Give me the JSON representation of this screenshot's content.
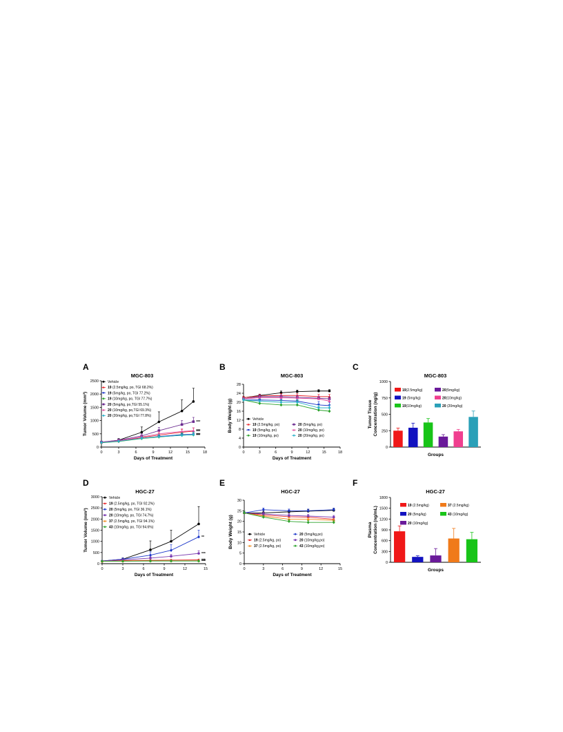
{
  "charts": [
    {
      "panel": "A",
      "type": "line",
      "title": "MGC-803",
      "xlabel": "Days of Treatment",
      "ylabel": "Tumor Volume (mm³)",
      "xlim": [
        0,
        18
      ],
      "ylim": [
        0,
        2500
      ],
      "xticks": [
        "0",
        "3",
        "6",
        "9",
        "12",
        "15",
        "18"
      ],
      "yticks": [
        "0",
        "500",
        "1000",
        "1500",
        "2000",
        "2500"
      ],
      "legend_position": "top-left",
      "series": [
        {
          "bold": "",
          "label": "Vehicle",
          "color": "#000000",
          "marker": "circle",
          "x": [
            0,
            3,
            7,
            10,
            14,
            16
          ],
          "y": [
            180,
            260,
            560,
            950,
            1360,
            1720
          ],
          "err": [
            30,
            60,
            200,
            380,
            420,
            500
          ],
          "stars": ""
        },
        {
          "bold": "19",
          "label": " (2.5mg/kg, po, TGI 68.2%)",
          "color": "#e8262b",
          "marker": "triangle",
          "x": [
            0,
            3,
            7,
            10,
            14,
            16
          ],
          "y": [
            170,
            230,
            360,
            450,
            560,
            600
          ],
          "err": [
            20,
            30,
            60,
            90,
            110,
            120
          ],
          "stars": "***"
        },
        {
          "bold": "19",
          "label": " (5mg/kg, po, TGI 77.2%)",
          "color": "#1a35c9",
          "marker": "triangle-down",
          "x": [
            0,
            3,
            7,
            10,
            14,
            16
          ],
          "y": [
            170,
            220,
            330,
            400,
            470,
            480
          ],
          "err": [
            20,
            30,
            50,
            80,
            90,
            100
          ],
          "stars": "***"
        },
        {
          "bold": "19",
          "label": " (10mg/kg, po, TGI 77.7%)",
          "color": "#2aa22a",
          "marker": "diamond",
          "x": [
            0,
            3,
            7,
            10,
            14,
            16
          ],
          "y": [
            160,
            210,
            320,
            380,
            450,
            460
          ],
          "err": [
            20,
            30,
            50,
            70,
            90,
            90
          ],
          "stars": "***"
        },
        {
          "bold": "20",
          "label": " (5mg/kg, po,TGI 55.1%)",
          "color": "#6a2a8f",
          "marker": "square",
          "x": [
            0,
            3,
            7,
            10,
            14,
            16
          ],
          "y": [
            190,
            260,
            420,
            620,
            850,
            960
          ],
          "err": [
            20,
            40,
            80,
            120,
            150,
            160
          ],
          "stars": "***"
        },
        {
          "bold": "20",
          "label": " (10mg/kg, po,TGI 69.3%)",
          "color": "#e0509e",
          "marker": "triangle",
          "x": [
            0,
            3,
            7,
            10,
            14,
            16
          ],
          "y": [
            180,
            240,
            380,
            500,
            590,
            620
          ],
          "err": [
            20,
            30,
            60,
            90,
            100,
            110
          ],
          "stars": "***"
        },
        {
          "bold": "20",
          "label": " (20mg/kg, po,TGI 77.8%)",
          "color": "#2ab0c8",
          "marker": "diamond",
          "x": [
            0,
            3,
            7,
            10,
            14,
            16
          ],
          "y": [
            170,
            220,
            330,
            390,
            440,
            470
          ],
          "err": [
            20,
            30,
            50,
            80,
            80,
            90
          ],
          "stars": "***"
        }
      ]
    },
    {
      "panel": "B",
      "type": "line",
      "title": "MGC-803",
      "xlabel": "Days of Treatment",
      "ylabel": "Body Weight (g)",
      "xlim": [
        0,
        18
      ],
      "ylim": [
        0,
        28
      ],
      "xticks": [
        "0",
        "3",
        "6",
        "9",
        "12",
        "15",
        "18"
      ],
      "yticks": [
        "0",
        "4",
        "8",
        "12",
        "16",
        "20",
        "24",
        "28"
      ],
      "legend_position": "bottom",
      "series": [
        {
          "bold": "",
          "label": "Vehicle",
          "color": "#000000",
          "marker": "circle",
          "x": [
            0,
            3,
            7,
            10,
            14,
            16
          ],
          "y": [
            22,
            23,
            24.2,
            24.7,
            25,
            25
          ],
          "err": [
            0.6,
            0.6,
            0.8,
            0.7,
            0.6,
            0.6
          ]
        },
        {
          "bold": "19",
          "label": " (2.5mg/kg, po)",
          "color": "#e8262b",
          "marker": "triangle",
          "x": [
            0,
            3,
            7,
            10,
            14,
            16
          ],
          "y": [
            22,
            22.8,
            23,
            23,
            22.5,
            22.5
          ],
          "err": [
            0.6,
            0.8,
            0.8,
            0.8,
            1.0,
            1.0
          ]
        },
        {
          "bold": "19",
          "label": " (5mg/kg, po)",
          "color": "#1a35c9",
          "marker": "triangle-down",
          "x": [
            0,
            3,
            7,
            10,
            14,
            16
          ],
          "y": [
            21,
            21,
            20.8,
            20.5,
            18.8,
            18.5
          ],
          "err": [
            0.6,
            1.2,
            1.2,
            1.2,
            1.5,
            1.5
          ]
        },
        {
          "bold": "19",
          "label": " (10mg/kg, po)",
          "color": "#2aa22a",
          "marker": "diamond",
          "x": [
            0,
            3,
            7,
            10,
            14,
            16
          ],
          "y": [
            21,
            19.5,
            18.8,
            18.8,
            16.5,
            16
          ],
          "err": [
            0.6,
            2.0,
            2.0,
            2.0,
            1.5,
            1.5
          ]
        },
        {
          "bold": "20",
          "label": " (5mg/kg, po)",
          "color": "#6a2a8f",
          "marker": "square",
          "x": [
            0,
            3,
            7,
            10,
            14,
            16
          ],
          "y": [
            21.5,
            22.5,
            22.5,
            22.2,
            21.8,
            21.5
          ],
          "err": [
            0.6,
            0.8,
            0.8,
            0.9,
            0.9,
            0.9
          ]
        },
        {
          "bold": "20",
          "label": " (10mg/kg, po)",
          "color": "#e0509e",
          "marker": "triangle",
          "x": [
            0,
            3,
            7,
            10,
            14,
            16
          ],
          "y": [
            21.5,
            22,
            22,
            21.8,
            21.5,
            20.5
          ],
          "err": [
            0.6,
            0.8,
            0.8,
            0.8,
            1.0,
            1.0
          ]
        },
        {
          "bold": "20",
          "label": " (20mg/kg, po)",
          "color": "#2ab0c8",
          "marker": "diamond",
          "x": [
            0,
            3,
            7,
            10,
            14,
            16
          ],
          "y": [
            21,
            20.5,
            20,
            20,
            17.5,
            17.5
          ],
          "err": [
            0.6,
            1.0,
            1.0,
            1.2,
            1.2,
            1.2
          ]
        }
      ]
    },
    {
      "panel": "C",
      "type": "bar",
      "title": "MGC-803",
      "xlabel": "Groups",
      "ylabel": "Tumor Tissue Concentration (ng/g)",
      "ylabel_lines": [
        "Tumor Tissue",
        "Concentration (ng/g)"
      ],
      "ylim": [
        0,
        1000
      ],
      "yticks": [
        "0",
        "250",
        "500",
        "750",
        "1000"
      ],
      "legend_position": "top",
      "bars": [
        {
          "bold": "19",
          "label": "(2.5mg/kg)",
          "color": "#f01818",
          "value": 250,
          "err": 40
        },
        {
          "bold": "19",
          "label": " (5mg/kg)",
          "color": "#1212c0",
          "value": 295,
          "err": 70
        },
        {
          "bold": "19",
          "label": "(10mg/kg)",
          "color": "#18c418",
          "value": 375,
          "err": 60
        },
        {
          "bold": "20",
          "label": "(5mg/kg)",
          "color": "#6a1a9a",
          "value": 160,
          "err": 30
        },
        {
          "bold": "20",
          "label": "(10mg/kg)",
          "color": "#f0408f",
          "value": 240,
          "err": 30
        },
        {
          "bold": "20",
          "label": " (20mg/kg)",
          "color": "#2aa0b8",
          "value": 460,
          "err": 90
        }
      ]
    },
    {
      "panel": "D",
      "type": "line",
      "title": "HGC-27",
      "xlabel": "Days of Treatment",
      "ylabel": "Tumor Volume (mm³)",
      "xlim": [
        0,
        15
      ],
      "ylim": [
        0,
        3000
      ],
      "xticks": [
        "0",
        "3",
        "6",
        "9",
        "12",
        "15"
      ],
      "yticks": [
        "0",
        "500",
        "1000",
        "1500",
        "2000",
        "2500",
        "3000"
      ],
      "legend_position": "top-left",
      "series": [
        {
          "bold": "",
          "label": "Vehicle",
          "color": "#000000",
          "marker": "circle",
          "x": [
            0,
            3,
            7,
            10,
            14
          ],
          "y": [
            120,
            200,
            620,
            1000,
            1780
          ],
          "err": [
            20,
            60,
            400,
            500,
            780
          ],
          "stars": ""
        },
        {
          "bold": "19",
          "label": " (2.5mg/kg, po, TGI 92.2%)",
          "color": "#e8262b",
          "marker": "triangle",
          "x": [
            0,
            3,
            7,
            10,
            14
          ],
          "y": [
            110,
            140,
            150,
            160,
            170
          ],
          "err": [
            20,
            20,
            30,
            30,
            30
          ],
          "stars": "***"
        },
        {
          "bold": "20",
          "label": " (5mg/kg, po, TGI 36.1%)",
          "color": "#1a35c9",
          "marker": "diamond",
          "x": [
            0,
            3,
            7,
            10,
            14
          ],
          "y": [
            120,
            200,
            380,
            600,
            1200
          ],
          "err": [
            20,
            50,
            150,
            250,
            300
          ],
          "stars": "**"
        },
        {
          "bold": "20",
          "label": " (10mg/kg, po, TGI 74.7%)",
          "color": "#7a3ab0",
          "marker": "circle",
          "x": [
            0,
            3,
            7,
            10,
            14
          ],
          "y": [
            120,
            170,
            250,
            330,
            460
          ],
          "err": [
            20,
            40,
            60,
            80,
            120
          ],
          "stars": "***"
        },
        {
          "bold": "37",
          "label": " (2.5mg/kg, po, TGI 94.1%)",
          "color": "#f08a1a",
          "marker": "triangle",
          "x": [
            0,
            3,
            7,
            10,
            14
          ],
          "y": [
            110,
            120,
            130,
            130,
            130
          ],
          "err": [
            15,
            20,
            20,
            20,
            20
          ],
          "stars": "***"
        },
        {
          "bold": "43",
          "label": " (10mg/kg, po, TGI 94.6%)",
          "color": "#2aa22a",
          "marker": "diamond",
          "x": [
            0,
            3,
            7,
            10,
            14
          ],
          "y": [
            110,
            110,
            120,
            120,
            120
          ],
          "err": [
            15,
            15,
            15,
            15,
            15
          ],
          "stars": "***"
        }
      ]
    },
    {
      "panel": "E",
      "type": "line",
      "title": "HGC-27",
      "xlabel": "Days of Treatment",
      "ylabel": "Body Weight (g)",
      "xlim": [
        0,
        15
      ],
      "ylim": [
        0,
        30
      ],
      "xticks": [
        "0",
        "3",
        "6",
        "9",
        "12",
        "15"
      ],
      "yticks": [
        "0",
        "5",
        "10",
        "15",
        "20",
        "25",
        "30"
      ],
      "legend_position": "bottom",
      "series": [
        {
          "bold": "",
          "label": "Vehicle",
          "color": "#000000",
          "marker": "circle",
          "x": [
            0,
            3,
            7,
            10,
            14
          ],
          "y": [
            24,
            24,
            24.5,
            24.8,
            25.2
          ],
          "err": [
            0.8,
            0.8,
            0.8,
            0.8,
            0.8
          ]
        },
        {
          "bold": "19",
          "label": " (2.5mg/kg, po)",
          "color": "#e8262b",
          "marker": "triangle",
          "x": [
            0,
            3,
            7,
            10,
            14
          ],
          "y": [
            24,
            23,
            22.2,
            22,
            21
          ],
          "err": [
            0.8,
            0.8,
            0.8,
            0.8,
            0.8
          ]
        },
        {
          "bold": "37",
          "label": " (2.5mg/kg, po)",
          "color": "#f08a1a",
          "marker": "triangle",
          "x": [
            0,
            3,
            7,
            10,
            14
          ],
          "y": [
            24,
            22.5,
            21,
            21,
            20.5
          ],
          "err": [
            0.8,
            0.8,
            0.8,
            0.8,
            0.8
          ]
        },
        {
          "bold": "20",
          "label": " (5mg/kg,po)",
          "color": "#1a35c9",
          "marker": "diamond",
          "x": [
            0,
            3,
            7,
            10,
            14
          ],
          "y": [
            24,
            25.5,
            25,
            25,
            25.5
          ],
          "err": [
            0.8,
            0.8,
            0.8,
            0.8,
            0.8
          ]
        },
        {
          "bold": "20",
          "label": " (10mg/kg,po)",
          "color": "#7a3ab0",
          "marker": "circle",
          "x": [
            0,
            3,
            7,
            10,
            14
          ],
          "y": [
            24,
            23.5,
            22.8,
            22.5,
            22
          ],
          "err": [
            0.8,
            0.8,
            0.8,
            0.8,
            0.8
          ]
        },
        {
          "bold": "43",
          "label": " (10mg/kg,po)",
          "color": "#2aa22a",
          "marker": "diamond",
          "x": [
            0,
            3,
            7,
            10,
            14
          ],
          "y": [
            24,
            22,
            20,
            19.5,
            19.5
          ],
          "err": [
            0.8,
            0.8,
            0.8,
            0.8,
            0.8
          ]
        }
      ]
    },
    {
      "panel": "F",
      "type": "bar",
      "title": "HGC-27",
      "xlabel": "Groups",
      "ylabel": "Plasma Concentration (ng/mL)",
      "ylabel_lines": [
        "Plasma",
        "Concentration (ng/mL)"
      ],
      "ylim": [
        0,
        1800
      ],
      "yticks": [
        "0",
        "300",
        "600",
        "900",
        "1200",
        "1500",
        "1800"
      ],
      "legend_position": "top",
      "bars": [
        {
          "bold": "19",
          "label": " (2.5mg/kg)",
          "color": "#f01818",
          "value": 860,
          "err": 150
        },
        {
          "bold": "20",
          "label": " (5mg/kg)",
          "color": "#1212c0",
          "value": 150,
          "err": 30
        },
        {
          "bold": "20",
          "label": " (10mg/kg)",
          "color": "#6a1a9a",
          "value": 190,
          "err": 190
        },
        {
          "bold": "37",
          "label": " (2.5mg/kg)",
          "color": "#f07a1a",
          "value": 660,
          "err": 280
        },
        {
          "bold": "43",
          "label": " (10mg/kg)",
          "color": "#18c418",
          "value": 640,
          "err": 190
        }
      ]
    }
  ]
}
